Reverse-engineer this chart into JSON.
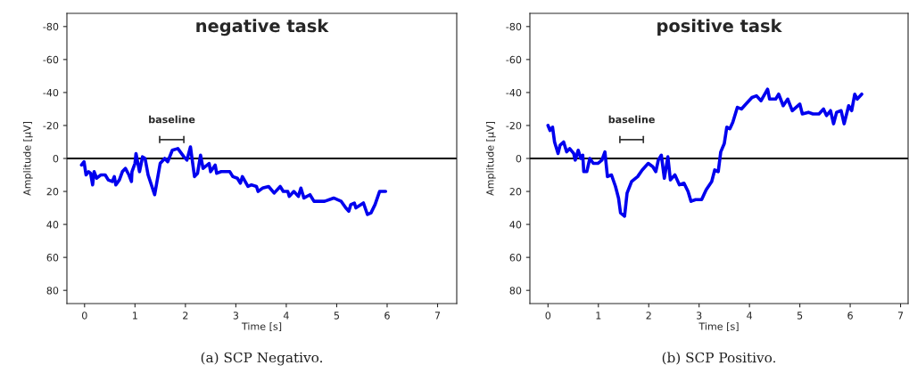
{
  "chart_data": [
    {
      "type": "line",
      "title": "negative task",
      "xlabel": "Time [s]",
      "ylabel": "Amplitude [μV]",
      "xlim": [
        -0.35,
        7.38
      ],
      "xticks": [
        0,
        1,
        2,
        3,
        4,
        5,
        6,
        7
      ],
      "ylim": [
        88,
        -88
      ],
      "yticks": [
        {
          "value": -80,
          "label": "-80"
        },
        {
          "value": -60,
          "label": "-60"
        },
        {
          "value": -40,
          "label": "-40"
        },
        {
          "value": -20,
          "label": "-20"
        },
        0,
        20,
        40,
        60,
        80
      ],
      "grid": false,
      "legend": false,
      "ref_lines": [
        {
          "axis": "y",
          "value": 0,
          "color": "#000000",
          "line_style": "solid"
        }
      ],
      "annotations": [
        "baseline",
        "(a) SCP Negativo."
      ],
      "series": [
        {
          "color": "#0000ee",
          "x": [
            -0.06,
            -0.01,
            0.03,
            0.08,
            0.12,
            0.16,
            0.19,
            0.24,
            0.32,
            0.41,
            0.47,
            0.55,
            0.59,
            0.62,
            0.69,
            0.75,
            0.81,
            0.88,
            0.93,
            0.94,
            1.0,
            1.02,
            1.09,
            1.15,
            1.2,
            1.26,
            1.39,
            1.5,
            1.59,
            1.65,
            1.74,
            1.85,
            1.97,
            2.03,
            2.1,
            2.18,
            2.24,
            2.3,
            2.35,
            2.47,
            2.5,
            2.59,
            2.62,
            2.71,
            2.79,
            2.88,
            2.94,
            3.03,
            3.09,
            3.13,
            3.24,
            3.31,
            3.41,
            3.44,
            3.53,
            3.65,
            3.76,
            3.88,
            3.94,
            4.03,
            4.06,
            4.15,
            4.24,
            4.29,
            4.35,
            4.47,
            4.55,
            4.76,
            4.94,
            5.09,
            5.18,
            5.24,
            5.28,
            5.35,
            5.38,
            5.53,
            5.61,
            5.68,
            5.76,
            5.85,
            5.97
          ],
          "values": [
            4,
            2,
            10,
            8,
            9,
            16,
            8,
            12,
            10,
            10,
            13,
            14,
            11,
            16,
            13,
            8,
            6,
            10,
            14,
            8,
            3,
            -3,
            8,
            -1,
            0,
            10,
            22,
            3,
            0,
            2,
            -5,
            -6,
            -1,
            1,
            -7,
            11,
            9,
            -2,
            6,
            3,
            8,
            4,
            9,
            8,
            8,
            8,
            11,
            12,
            15,
            11,
            17,
            16,
            17,
            20,
            18,
            17,
            21,
            17,
            20,
            20,
            23,
            20,
            23,
            18,
            24,
            22,
            26,
            26,
            24,
            26,
            30,
            32,
            28,
            27,
            30,
            27,
            34,
            33,
            28,
            20,
            20
          ]
        }
      ]
    },
    {
      "type": "line",
      "title": "positive task",
      "xlabel": "Time [s]",
      "ylabel": "Amplitude [μV]",
      "xlim": [
        -0.36,
        7.15
      ],
      "xticks": [
        0,
        1,
        2,
        3,
        4,
        5,
        6,
        7
      ],
      "ylim": [
        88,
        -88
      ],
      "yticks": [
        {
          "value": -80,
          "label": "-80"
        },
        {
          "value": -60,
          "label": "-60"
        },
        {
          "value": -40,
          "label": "-40"
        },
        {
          "value": -20,
          "label": "-20"
        },
        0,
        20,
        40,
        60,
        80
      ],
      "grid": false,
      "legend": false,
      "ref_lines": [
        {
          "axis": "y",
          "value": 0,
          "color": "#000000",
          "line_style": "solid"
        }
      ],
      "annotations": [
        "baseline",
        "(b) SCP Positivo."
      ],
      "series": [
        {
          "color": "#0000ee",
          "x": [
            0,
            0.04,
            0.09,
            0.13,
            0.2,
            0.24,
            0.31,
            0.37,
            0.43,
            0.51,
            0.54,
            0.6,
            0.65,
            0.69,
            0.71,
            0.77,
            0.83,
            0.9,
            0.99,
            1.07,
            1.13,
            1.18,
            1.26,
            1.34,
            1.4,
            1.44,
            1.52,
            1.57,
            1.66,
            1.78,
            1.87,
            1.99,
            2.08,
            2.14,
            2.19,
            2.25,
            2.31,
            2.38,
            2.43,
            2.52,
            2.61,
            2.7,
            2.78,
            2.84,
            2.93,
            3.05,
            3.14,
            3.25,
            3.31,
            3.38,
            3.43,
            3.5,
            3.55,
            3.61,
            3.67,
            3.76,
            3.84,
            3.96,
            4.05,
            4.14,
            4.23,
            4.36,
            4.4,
            4.52,
            4.58,
            4.67,
            4.76,
            4.85,
            5.0,
            5.05,
            5.17,
            5.26,
            5.38,
            5.47,
            5.53,
            5.61,
            5.67,
            5.73,
            5.82,
            5.88,
            5.97,
            6.03,
            6.09,
            6.14,
            6.23
          ],
          "values": [
            -20,
            -17,
            -19,
            -10,
            -3,
            -8,
            -10,
            -4,
            -6,
            -3,
            1,
            -5,
            0,
            -2,
            8,
            8,
            0,
            3,
            3,
            1,
            -4,
            11,
            10,
            17,
            24,
            33,
            35,
            21,
            14,
            11,
            7,
            3,
            5,
            8,
            1,
            -2,
            12,
            -1,
            13,
            10,
            16,
            15,
            20,
            26,
            25,
            25,
            19,
            14,
            7,
            8,
            -4,
            -9,
            -19,
            -18,
            -22,
            -31,
            -30,
            -34,
            -37,
            -38,
            -35,
            -42,
            -36,
            -36,
            -39,
            -32,
            -36,
            -29,
            -33,
            -27,
            -28,
            -27,
            -27,
            -30,
            -26,
            -29,
            -21,
            -28,
            -29,
            -21,
            -32,
            -29,
            -39,
            -36,
            -39
          ]
        }
      ]
    }
  ]
}
